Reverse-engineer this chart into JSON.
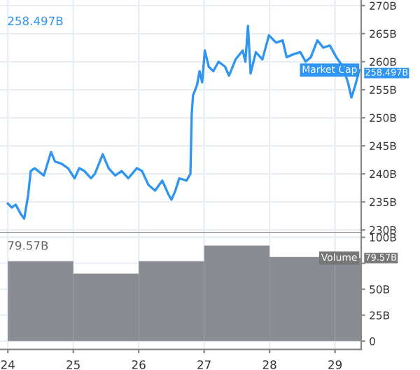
{
  "chart_data": [
    {
      "type": "line",
      "x": [
        24.0,
        24.06,
        24.12,
        24.2,
        24.25,
        24.31,
        24.35,
        24.41,
        24.55,
        24.66,
        24.72,
        24.82,
        24.92,
        25.02,
        25.09,
        25.17,
        25.27,
        25.33,
        25.45,
        25.54,
        25.64,
        25.74,
        25.84,
        25.97,
        26.05,
        26.15,
        26.25,
        26.36,
        26.46,
        26.5,
        26.56,
        26.62,
        26.73,
        26.79,
        26.81,
        26.83,
        26.89,
        26.93,
        26.97,
        27.01,
        27.07,
        27.14,
        27.22,
        27.32,
        27.38,
        27.48,
        27.59,
        27.63,
        27.67,
        27.71,
        27.79,
        27.89,
        27.99,
        28.1,
        28.2,
        28.26,
        28.36,
        28.47,
        28.55,
        28.63,
        28.73,
        28.82,
        28.92,
        29.02,
        29.12,
        29.2,
        29.25,
        29.31,
        29.37
      ],
      "series": [
        {
          "color": "#2f95f0",
          "values": [
            234.7,
            234.0,
            234.5,
            232.8,
            232.0,
            236.2,
            240.5,
            241.0,
            239.7,
            243.9,
            242.2,
            241.8,
            241.0,
            239.2,
            241.0,
            240.5,
            239.2,
            240.0,
            243.5,
            241.0,
            239.7,
            240.5,
            239.2,
            241.0,
            240.5,
            238.0,
            237.0,
            238.8,
            236.2,
            235.4,
            237.0,
            239.2,
            238.8,
            240.0,
            250.7,
            254.0,
            255.8,
            258.3,
            256.3,
            262.0,
            259.1,
            258.3,
            260.0,
            259.1,
            257.5,
            260.4,
            262.0,
            260.0,
            266.4,
            257.9,
            261.7,
            260.4,
            264.7,
            263.4,
            263.8,
            260.8,
            261.3,
            261.7,
            260.0,
            260.8,
            263.8,
            262.5,
            262.9,
            260.8,
            259.1,
            256.2,
            253.6,
            255.8,
            258.5
          ]
        }
      ],
      "xlim": [
        23.88,
        29.4
      ],
      "ylim": [
        229.5,
        271
      ],
      "yticks": [
        {
          "value": 230,
          "label": "230B"
        },
        {
          "value": 235,
          "label": "235B"
        },
        {
          "value": 240,
          "label": "240B"
        },
        {
          "value": 245,
          "label": "245B"
        },
        {
          "value": 250,
          "label": "250B"
        },
        {
          "value": 255,
          "label": "255B"
        },
        {
          "value": 260,
          "label": "260B"
        },
        {
          "value": 265,
          "label": "265B"
        },
        {
          "value": 270,
          "label": "270B"
        }
      ],
      "xticks": [
        24,
        25,
        26,
        27,
        28,
        29
      ],
      "tick_labels": "y",
      "grid": true,
      "annotations": [
        "258.497B",
        "Market Cap",
        "258.497B"
      ]
    },
    {
      "type": "bar",
      "x": [
        24.5,
        25.5,
        26.5,
        27.5,
        28.5,
        29.2
      ],
      "series": [
        {
          "color": "#8a8c93",
          "values": [
            77,
            65,
            77,
            92,
            81,
            80
          ]
        }
      ],
      "xlim": [
        23.88,
        29.4
      ],
      "ylim": [
        -8,
        104.5
      ],
      "yticks": [
        0,
        {
          "value": 25,
          "label": "25B"
        },
        {
          "value": 50,
          "label": "50B"
        },
        {
          "value": 75,
          "label": null
        },
        {
          "value": 100,
          "label": "100B"
        }
      ],
      "xticks": [
        24,
        25,
        26,
        27,
        28,
        29
      ],
      "grid": true,
      "annotations": [
        "79.57B",
        "Volume",
        "79.57B"
      ]
    }
  ]
}
